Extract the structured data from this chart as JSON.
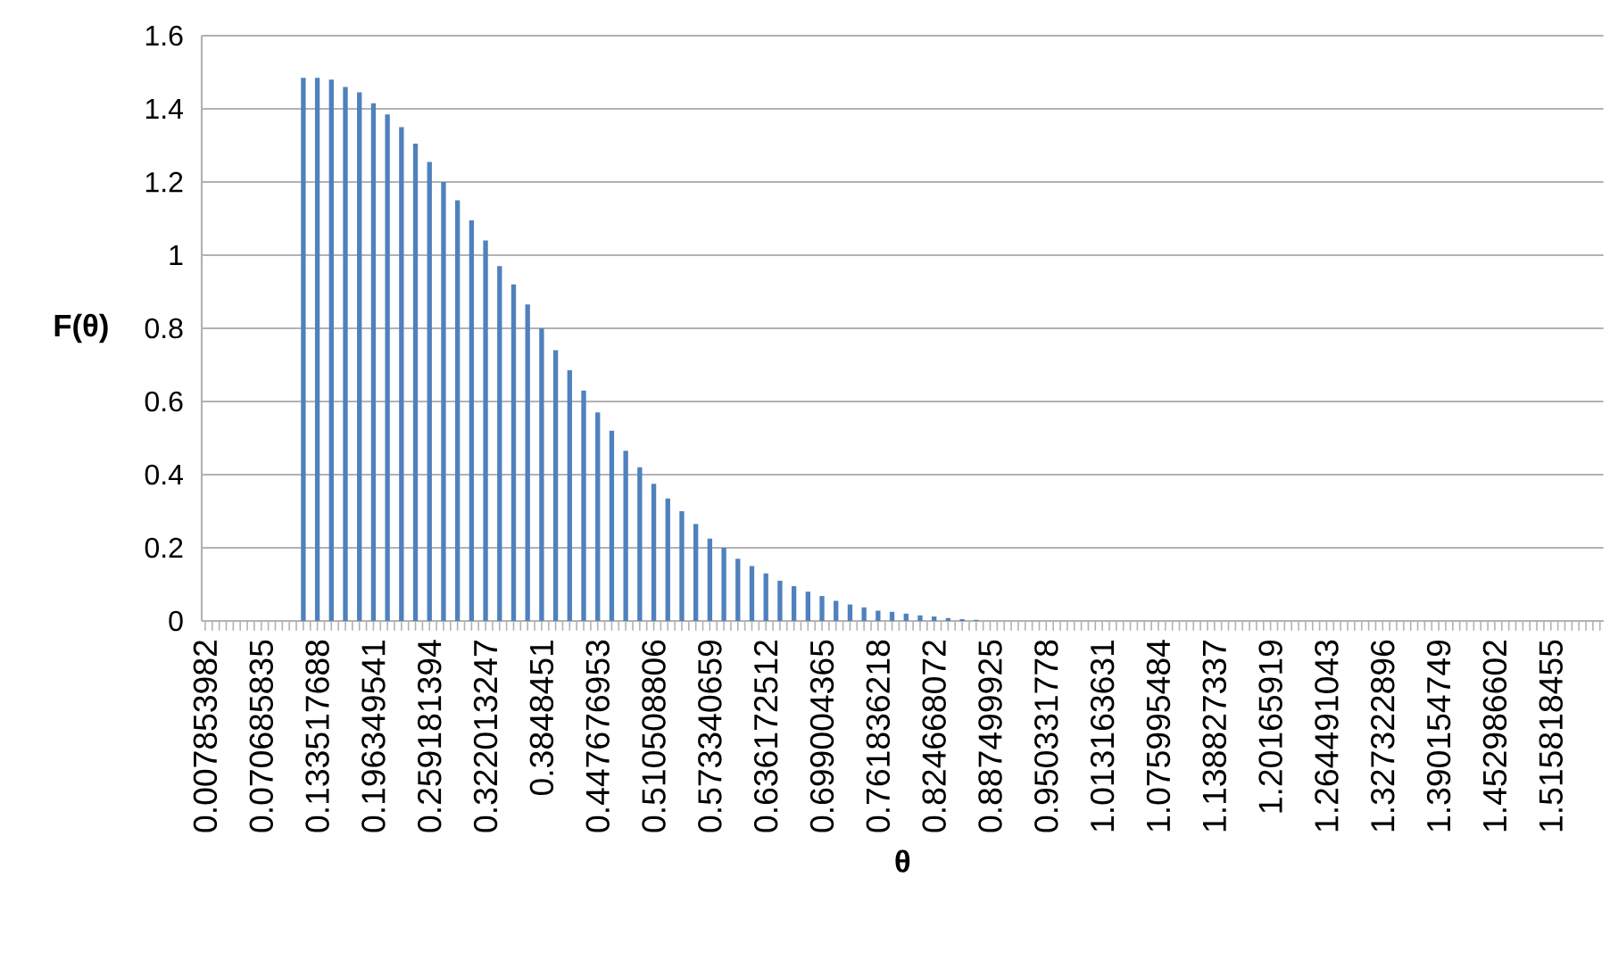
{
  "chart_data": {
    "type": "bar",
    "xlabel": "θ",
    "ylabel": "F(θ)",
    "categories": [
      "0.007853982",
      null,
      null,
      null,
      null,
      null,
      null,
      null,
      "0.070685835",
      null,
      null,
      null,
      null,
      null,
      null,
      null,
      "0.133517688",
      null,
      null,
      null,
      null,
      null,
      null,
      null,
      "0.196349541",
      null,
      null,
      null,
      null,
      null,
      null,
      null,
      "0.259181394",
      null,
      null,
      null,
      null,
      null,
      null,
      null,
      "0.322013247",
      null,
      null,
      null,
      null,
      null,
      null,
      null,
      "0.3848451",
      null,
      null,
      null,
      null,
      null,
      null,
      null,
      "0.447676953",
      null,
      null,
      null,
      null,
      null,
      null,
      null,
      "0.510508806",
      null,
      null,
      null,
      null,
      null,
      null,
      null,
      "0.573340659",
      null,
      null,
      null,
      null,
      null,
      null,
      null,
      "0.636172512",
      null,
      null,
      null,
      null,
      null,
      null,
      null,
      "0.699004365",
      null,
      null,
      null,
      null,
      null,
      null,
      null,
      "0.761836218",
      null,
      null,
      null,
      null,
      null,
      null,
      null,
      "0.824668072",
      null,
      null,
      null,
      null,
      null,
      null,
      null,
      "0.887499925",
      null,
      null,
      null,
      null,
      null,
      null,
      null,
      "0.950331778",
      null,
      null,
      null,
      null,
      null,
      null,
      null,
      "1.013163631",
      null,
      null,
      null,
      null,
      null,
      null,
      null,
      "1.075995484",
      null,
      null,
      null,
      null,
      null,
      null,
      null,
      "1.138827337",
      null,
      null,
      null,
      null,
      null,
      null,
      null,
      "1.20165919",
      null,
      null,
      null,
      null,
      null,
      null,
      null,
      "1.264491043",
      null,
      null,
      null,
      null,
      null,
      null,
      null,
      "1.327322896",
      null,
      null,
      null,
      null,
      null,
      null,
      null,
      "1.390154749",
      null,
      null,
      null,
      null,
      null,
      null,
      null,
      "1.452986602",
      null,
      null,
      null,
      null,
      null,
      null,
      null,
      "1.515818455",
      null,
      null,
      null,
      null,
      null,
      null,
      null
    ],
    "values": [
      null,
      null,
      null,
      null,
      null,
      null,
      null,
      null,
      null,
      null,
      null,
      null,
      null,
      null,
      1.485,
      null,
      1.485,
      null,
      1.48,
      null,
      1.46,
      null,
      1.445,
      null,
      1.415,
      null,
      1.385,
      null,
      1.35,
      null,
      1.305,
      null,
      1.255,
      null,
      1.2,
      null,
      1.15,
      null,
      1.095,
      null,
      1.04,
      null,
      0.97,
      null,
      0.92,
      null,
      0.865,
      null,
      0.8,
      null,
      0.74,
      null,
      0.685,
      null,
      0.63,
      null,
      0.57,
      null,
      0.52,
      null,
      0.465,
      null,
      0.42,
      null,
      0.375,
      null,
      0.335,
      null,
      0.3,
      null,
      0.265,
      null,
      0.225,
      null,
      0.2,
      null,
      0.17,
      null,
      0.15,
      null,
      0.13,
      null,
      0.11,
      null,
      0.095,
      null,
      0.08,
      null,
      0.068,
      null,
      0.055,
      null,
      0.045,
      null,
      0.037,
      null,
      0.028,
      null,
      0.025,
      null,
      0.02,
      null,
      0.015,
      null,
      0.012,
      null,
      0.008,
      null,
      0.005,
      null,
      0.003,
      null,
      null,
      null,
      null,
      null,
      null,
      null,
      null,
      null,
      null,
      null,
      null,
      null,
      null,
      null,
      null,
      null,
      null,
      null,
      null,
      null,
      null,
      null,
      null,
      null,
      null,
      null,
      null,
      null,
      null,
      null,
      null,
      null,
      null,
      null,
      null,
      null,
      null,
      null,
      null,
      null,
      null,
      null,
      null,
      null,
      null,
      null,
      null,
      null,
      null,
      null,
      null,
      null,
      null,
      null,
      null,
      null,
      null,
      null,
      null,
      null,
      null,
      null,
      null,
      null,
      null,
      null,
      null,
      null,
      null,
      null,
      null,
      null,
      null,
      null,
      null,
      null,
      null,
      null,
      null,
      null,
      null,
      null,
      null,
      null,
      null,
      null,
      null,
      null
    ],
    "color": "#4f81bd",
    "ylim": [
      0,
      1.6
    ],
    "yticks": [
      0,
      0.2,
      0.4,
      0.6,
      0.8,
      1,
      1.2,
      1.4,
      1.6
    ],
    "grid": "y"
  }
}
